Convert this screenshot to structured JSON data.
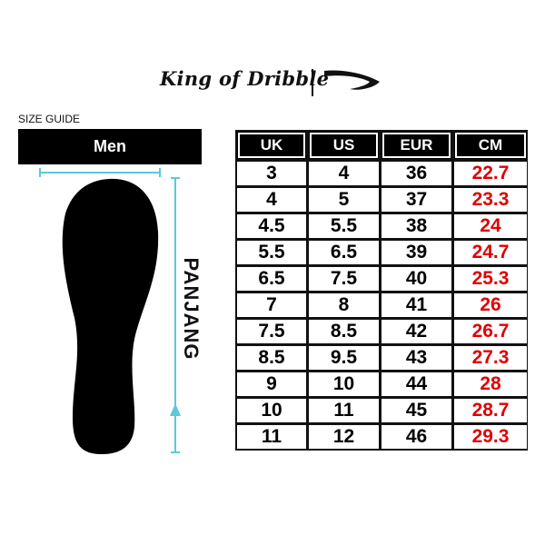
{
  "brand": {
    "name": "King of Dribble",
    "logo_icon": "swoosh-icon"
  },
  "guide_label": "SIZE GUIDE",
  "gender_label": "Men",
  "length_label": "PANJANG",
  "colors": {
    "arrow": "#5bc8dc",
    "cm_text": "#e00000",
    "header_bg": "#000000"
  },
  "table": {
    "headers": [
      "UK",
      "US",
      "EUR",
      "CM"
    ],
    "rows": [
      [
        "3",
        "4",
        "36",
        "22.7"
      ],
      [
        "4",
        "5",
        "37",
        "23.3"
      ],
      [
        "4.5",
        "5.5",
        "38",
        "24"
      ],
      [
        "5.5",
        "6.5",
        "39",
        "24.7"
      ],
      [
        "6.5",
        "7.5",
        "40",
        "25.3"
      ],
      [
        "7",
        "8",
        "41",
        "26"
      ],
      [
        "7.5",
        "8.5",
        "42",
        "26.7"
      ],
      [
        "8.5",
        "9.5",
        "43",
        "27.3"
      ],
      [
        "9",
        "10",
        "44",
        "28"
      ],
      [
        "10",
        "11",
        "45",
        "28.7"
      ],
      [
        "11",
        "12",
        "46",
        "29.3"
      ]
    ]
  }
}
